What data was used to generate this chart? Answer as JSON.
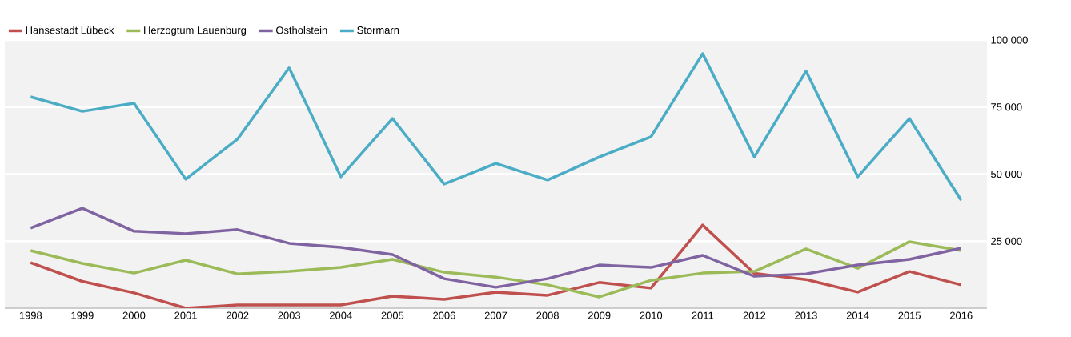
{
  "chart_data": {
    "type": "line",
    "categories": [
      "1998",
      "1999",
      "2000",
      "2001",
      "2002",
      "2003",
      "2004",
      "2005",
      "2006",
      "2007",
      "2008",
      "2009",
      "2010",
      "2011",
      "2012",
      "2013",
      "2014",
      "2015",
      "2016"
    ],
    "series": [
      {
        "name": "Hansestadt Lübeck",
        "color": "#c0504d",
        "values": [
          17000,
          10000,
          5700,
          0,
          1200,
          1200,
          1200,
          4500,
          3300,
          6000,
          4800,
          9600,
          7500,
          31000,
          13000,
          10700,
          6000,
          13700,
          8700
        ]
      },
      {
        "name": "Herzogtum Lauenburg",
        "color": "#9bbb59",
        "values": [
          21500,
          16700,
          13100,
          17900,
          12800,
          13700,
          15200,
          18200,
          13400,
          11600,
          8700,
          4200,
          10400,
          13100,
          13700,
          22100,
          14900,
          24800,
          21500
        ]
      },
      {
        "name": "Ostholstein",
        "color": "#8064a2",
        "values": [
          29900,
          37300,
          28700,
          27800,
          29300,
          24200,
          22700,
          20000,
          11000,
          7800,
          11000,
          16100,
          15200,
          19700,
          11900,
          12800,
          16100,
          18200,
          22400
        ]
      },
      {
        "name": "Stormarn",
        "color": "#4bacc6",
        "values": [
          78800,
          73400,
          76400,
          48100,
          63000,
          89600,
          49000,
          70700,
          46300,
          54000,
          47800,
          56400,
          63900,
          94900,
          56400,
          88400,
          49000,
          70700,
          40300
        ]
      }
    ],
    "ylim": [
      0,
      100000
    ],
    "yticks": [
      {
        "value": 0,
        "label": "-"
      },
      {
        "value": 25000,
        "label": "25 000"
      },
      {
        "value": 50000,
        "label": "50 000"
      },
      {
        "value": 75000,
        "label": "75 000"
      },
      {
        "value": 100000,
        "label": "100 000"
      }
    ],
    "grid": "y",
    "legend": "top left",
    "marker": "none",
    "line_style": "solid"
  }
}
